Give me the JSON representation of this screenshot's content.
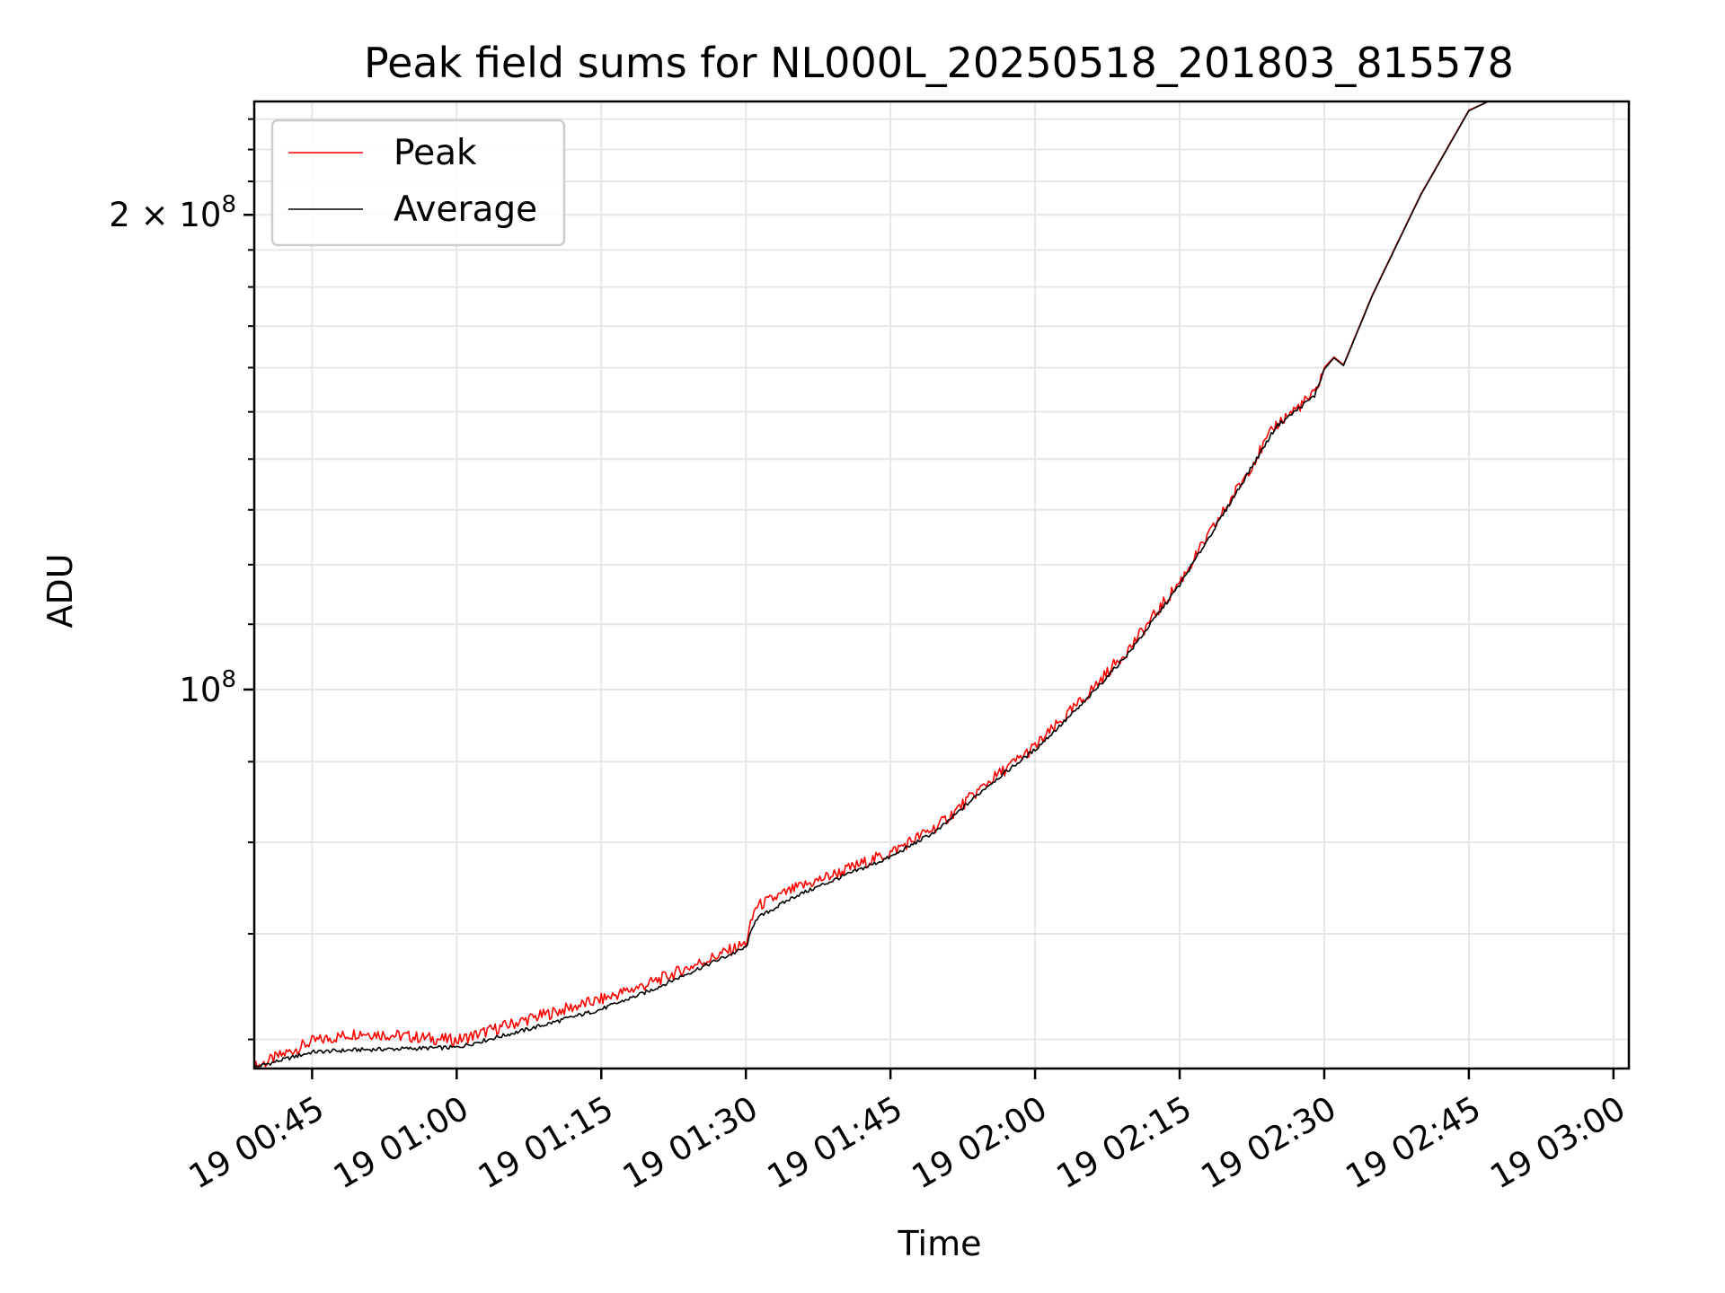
{
  "chart_data": {
    "type": "line",
    "title": "Peak field sums for NL000L_20250518_201803_815578",
    "xlabel": "Time",
    "ylabel": "ADU",
    "x_ticks": [
      "19 00:45",
      "19 01:00",
      "19 01:15",
      "19 01:30",
      "19 01:45",
      "19 02:00",
      "19 02:15",
      "19 02:30",
      "19 02:45",
      "19 03:00"
    ],
    "y_ticks": [
      {
        "value": 100000000,
        "base": "10",
        "exp": "8",
        "mult": ""
      },
      {
        "value": 200000000,
        "base": "10",
        "exp": "8",
        "mult": "2 × "
      }
    ],
    "y_scale": "log",
    "ylim": [
      57500000,
      236000000
    ],
    "xlim": [
      "19 00:39",
      "19 03:00"
    ],
    "grid": true,
    "legend_position": "upper-left",
    "series": [
      {
        "name": "Peak",
        "color": "#ff0000",
        "x": [
          "19 00:39",
          "19 00:45",
          "19 00:50",
          "19 01:00",
          "19 01:07",
          "19 01:15",
          "19 01:20",
          "19 01:25",
          "19 01:30",
          "19 01:31",
          "19 01:35",
          "19 01:40",
          "19 01:45",
          "19 01:50",
          "19 01:55",
          "19 02:00",
          "19 02:05",
          "19 02:10",
          "19 02:15",
          "19 02:20",
          "19 02:25",
          "19 02:29",
          "19 02:30",
          "19 02:31",
          "19 02:32",
          "19 02:35",
          "19 02:40",
          "19 02:45",
          "19 02:47"
        ],
        "y": [
          57600000,
          59800000,
          60600000,
          59900000,
          61700000,
          63600000,
          65100000,
          67000000,
          69000000,
          72800000,
          74700000,
          76700000,
          78800000,
          82000000,
          87200000,
          92000000,
          98600000,
          106600000,
          117000000,
          131000000,
          147200000,
          154000000,
          160000000,
          162500000,
          160700000,
          178000000,
          206000000,
          233000000,
          236000000
        ]
      },
      {
        "name": "Average",
        "color": "#000000",
        "x": [
          "19 00:39",
          "19 00:45",
          "19 00:50",
          "19 01:00",
          "19 01:07",
          "19 01:15",
          "19 01:20",
          "19 01:25",
          "19 01:30",
          "19 01:31",
          "19 01:35",
          "19 01:40",
          "19 01:45",
          "19 01:50",
          "19 01:55",
          "19 02:00",
          "19 02:05",
          "19 02:10",
          "19 02:15",
          "19 02:20",
          "19 02:25",
          "19 02:29",
          "19 02:30",
          "19 02:31",
          "19 02:32",
          "19 02:35",
          "19 02:40",
          "19 02:45",
          "19 02:47"
        ],
        "y": [
          57600000,
          58900000,
          59100000,
          59300000,
          60800000,
          62700000,
          64400000,
          66500000,
          68600000,
          71500000,
          73900000,
          76100000,
          78300000,
          81500000,
          86800000,
          91600000,
          98000000,
          106000000,
          116500000,
          130600000,
          146800000,
          153600000,
          159600000,
          162300000,
          160500000,
          177800000,
          205800000,
          232800000,
          236000000
        ]
      }
    ]
  },
  "colors": {
    "peak": "#ff0000",
    "average": "#000000",
    "grid": "#e6e6e6",
    "axes": "#000000"
  }
}
